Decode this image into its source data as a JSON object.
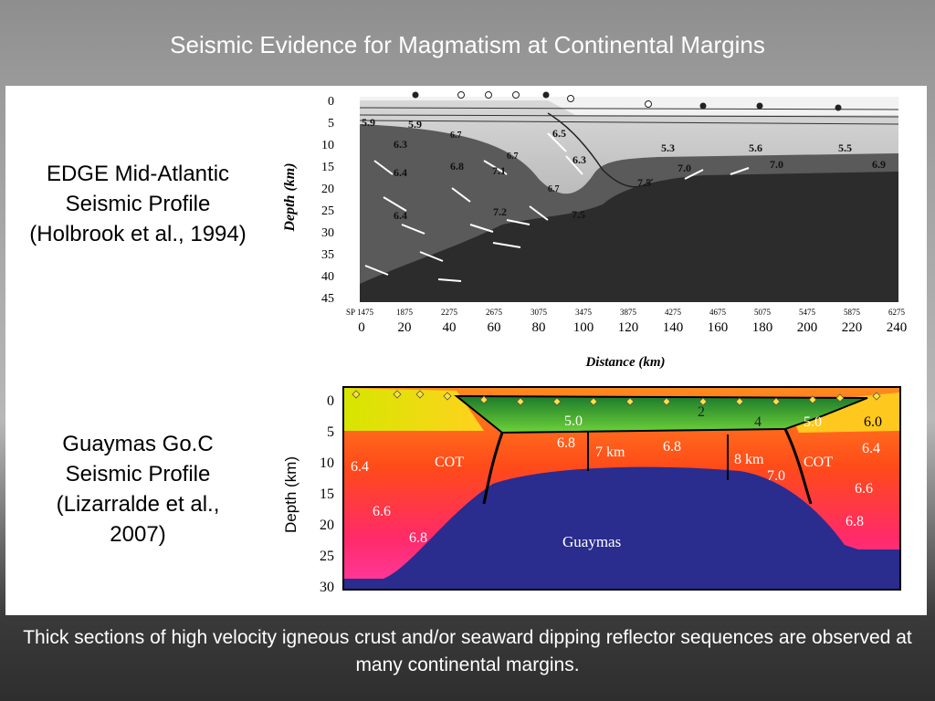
{
  "title": "Seismic Evidence for Magmatism at Continental Margins",
  "edge": {
    "caption": [
      "EDGE Mid-Atlantic",
      "Seismic Profile",
      "(Holbrook et al., 1994)"
    ],
    "ylabel": "Depth (km)",
    "xlabel": "Distance (km)",
    "depth_ticks": [
      "0",
      "5",
      "10",
      "15",
      "20",
      "25",
      "30",
      "35",
      "40",
      "45"
    ],
    "sp_ticks": [
      "SP 1475",
      "1875",
      "2275",
      "2675",
      "3075",
      "3475",
      "3875",
      "4275",
      "4675",
      "5075",
      "5475",
      "5875",
      "6275"
    ],
    "distance_ticks": [
      "0",
      "20",
      "40",
      "60",
      "80",
      "100",
      "120",
      "140",
      "160",
      "180",
      "200",
      "220",
      "240"
    ],
    "velocities": [
      "5.9",
      "5.9",
      "6.3",
      "6.4",
      "6.4",
      "6.8",
      "7.1",
      "7.2",
      "6.7",
      "6.7",
      "6.3",
      "6.5",
      "5.3",
      "5.6",
      "5.5",
      "7.0",
      "7.0",
      "6.9",
      "7.5",
      "7.5",
      "6.7"
    ]
  },
  "guaymas": {
    "caption": [
      "Guaymas Go.C",
      "Seismic Profile",
      "(Lizarralde et al.,",
      "2007)"
    ],
    "ylabel": "Depth (km)",
    "depth_ticks": [
      "0",
      "5",
      "10",
      "15",
      "20",
      "25",
      "30"
    ],
    "labels": {
      "v50a": "5.0",
      "v68a": "6.8",
      "thick7": "7 km",
      "v68b": "6.8",
      "thick8": "8 km",
      "v70": "7.0",
      "v50b": "5.0",
      "v60": "6.0",
      "v64r": "6.4",
      "cotL": "COT",
      "cotR": "COT",
      "v64l": "6.4",
      "v66l": "6.6",
      "v68l": "6.8",
      "v66r": "6.6",
      "v68r": "6.8",
      "n2": "2",
      "n4": "4",
      "guaymas": "Guaymas"
    }
  },
  "footer": "Thick sections of high velocity igneous crust and/or seaward dipping reflector sequences are observed at many continental margins.",
  "colors": {
    "mantle": "#2a2c8e",
    "upper": "#f7e200",
    "lower": "#ff5a10"
  }
}
